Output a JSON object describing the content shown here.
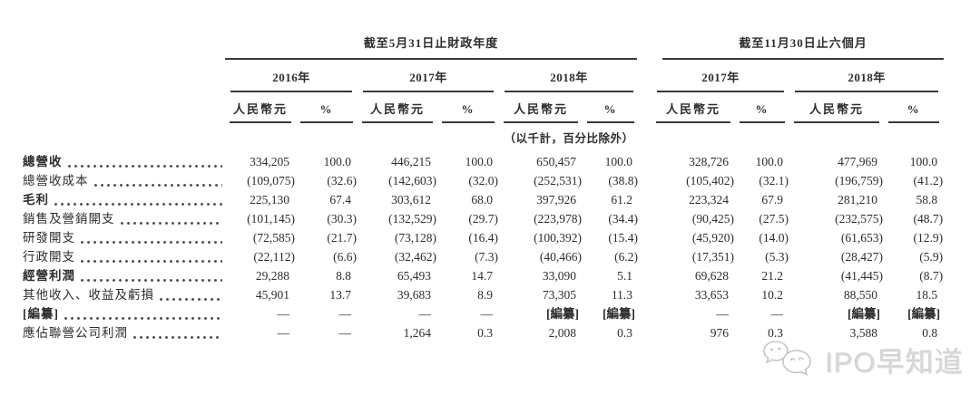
{
  "table": {
    "group_headers": [
      {
        "label": "截至5月31日止財政年度"
      },
      {
        "label": "截至11月30日止六個月"
      }
    ],
    "year_headers": [
      "2016年",
      "2017年",
      "2018年",
      "2017年",
      "2018年"
    ],
    "unit_headers": {
      "currency": "人民幣元",
      "percent": "%"
    },
    "note": "（以千計，百分比除外）",
    "rows": [
      {
        "label": "總營收",
        "bold": true,
        "values": [
          "334,205",
          "100.0",
          "446,215",
          "100.0",
          "650,457",
          "100.0",
          "328,726",
          "100.0",
          "477,969",
          "100.0"
        ]
      },
      {
        "label": "總營收成本",
        "bold": false,
        "values": [
          "(109,075)",
          "(32.6)",
          "(142,603)",
          "(32.0)",
          "(252,531)",
          "(38.8)",
          "(105,402)",
          "(32.1)",
          "(196,759)",
          "(41.2)"
        ]
      },
      {
        "label": "毛利",
        "bold": true,
        "values": [
          "225,130",
          "67.4",
          "303,612",
          "68.0",
          "397,926",
          "61.2",
          "223,324",
          "67.9",
          "281,210",
          "58.8"
        ]
      },
      {
        "label": "銷售及營銷開支",
        "bold": false,
        "values": [
          "(101,145)",
          "(30.3)",
          "(132,529)",
          "(29.7)",
          "(223,978)",
          "(34.4)",
          "(90,425)",
          "(27.5)",
          "(232,575)",
          "(48.7)"
        ]
      },
      {
        "label": "研發開支",
        "bold": false,
        "values": [
          "(72,585)",
          "(21.7)",
          "(73,128)",
          "(16.4)",
          "(100,392)",
          "(15.4)",
          "(45,920)",
          "(14.0)",
          "(61,653)",
          "(12.9)"
        ]
      },
      {
        "label": "行政開支",
        "bold": false,
        "values": [
          "(22,112)",
          "(6.6)",
          "(32,462)",
          "(7.3)",
          "(40,466)",
          "(6.2)",
          "(17,351)",
          "(5.3)",
          "(28,427)",
          "(5.9)"
        ]
      },
      {
        "label": "經營利潤",
        "bold": true,
        "values": [
          "29,288",
          "8.8",
          "65,493",
          "14.7",
          "33,090",
          "5.1",
          "69,628",
          "21.2",
          "(41,445)",
          "(8.7)"
        ]
      },
      {
        "label": "其他收入、收益及虧損",
        "bold": false,
        "values": [
          "45,901",
          "13.7",
          "39,683",
          "8.9",
          "73,305",
          "11.3",
          "33,653",
          "10.2",
          "88,550",
          "18.5"
        ]
      },
      {
        "label": "[編纂]",
        "bold": true,
        "values": [
          "—",
          "—",
          "—",
          "—",
          "[編纂]",
          "[編纂]",
          "—",
          "—",
          "[編纂]",
          "[編纂]"
        ]
      },
      {
        "label": "應佔聯營公司利潤",
        "bold": false,
        "values": [
          "—",
          "—",
          "1,264",
          "0.3",
          "2,008",
          "0.3",
          "976",
          "0.3",
          "3,588",
          "0.8"
        ]
      }
    ]
  },
  "watermark": {
    "text": "IPO早知道",
    "icon": "wechat-chat-bubbles-icon"
  },
  "colors": {
    "text": "#2d2d2d",
    "rule": "#3a3a3a",
    "watermark_text": "#d7d7d7"
  }
}
